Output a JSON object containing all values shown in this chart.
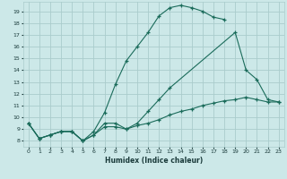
{
  "xlabel": "Humidex (Indice chaleur)",
  "xlim": [
    -0.5,
    23.5
  ],
  "ylim": [
    7.5,
    19.8
  ],
  "xticks": [
    0,
    1,
    2,
    3,
    4,
    5,
    6,
    7,
    8,
    9,
    10,
    11,
    12,
    13,
    14,
    15,
    16,
    17,
    18,
    19,
    20,
    21,
    22,
    23
  ],
  "yticks": [
    8,
    9,
    10,
    11,
    12,
    13,
    14,
    15,
    16,
    17,
    18,
    19
  ],
  "bg_color": "#cce8e8",
  "grid_color": "#aacccc",
  "line_color": "#1a6b5a",
  "line1_x": [
    0,
    1,
    2,
    3,
    4,
    5,
    6,
    7,
    8,
    9,
    10,
    11,
    12,
    13,
    14,
    15,
    16,
    17,
    18
  ],
  "line1_y": [
    9.5,
    8.2,
    8.5,
    8.8,
    8.8,
    8.0,
    8.8,
    10.4,
    12.8,
    14.8,
    16.0,
    17.2,
    18.6,
    19.3,
    19.5,
    19.3,
    19.0,
    18.5,
    18.3
  ],
  "line2_x": [
    0,
    1,
    2,
    3,
    4,
    5,
    6,
    7,
    8,
    9,
    10,
    11,
    12,
    13,
    14,
    15,
    16,
    17,
    18,
    19,
    20,
    21,
    22,
    23
  ],
  "line2_y": [
    9.5,
    8.2,
    8.5,
    8.8,
    8.8,
    8.0,
    8.5,
    9.2,
    9.2,
    9.0,
    9.3,
    9.5,
    9.8,
    10.2,
    10.5,
    10.7,
    11.0,
    11.2,
    11.4,
    11.5,
    11.7,
    11.5,
    11.3,
    11.3
  ],
  "line3_x": [
    0,
    1,
    2,
    3,
    4,
    5,
    6,
    7,
    8,
    9,
    10,
    11,
    12,
    13,
    19,
    20,
    21,
    22,
    23
  ],
  "line3_y": [
    9.5,
    8.2,
    8.5,
    8.8,
    8.8,
    8.0,
    8.5,
    9.5,
    9.5,
    9.0,
    9.5,
    10.5,
    11.5,
    12.5,
    17.2,
    14.0,
    13.2,
    11.5,
    11.3
  ]
}
